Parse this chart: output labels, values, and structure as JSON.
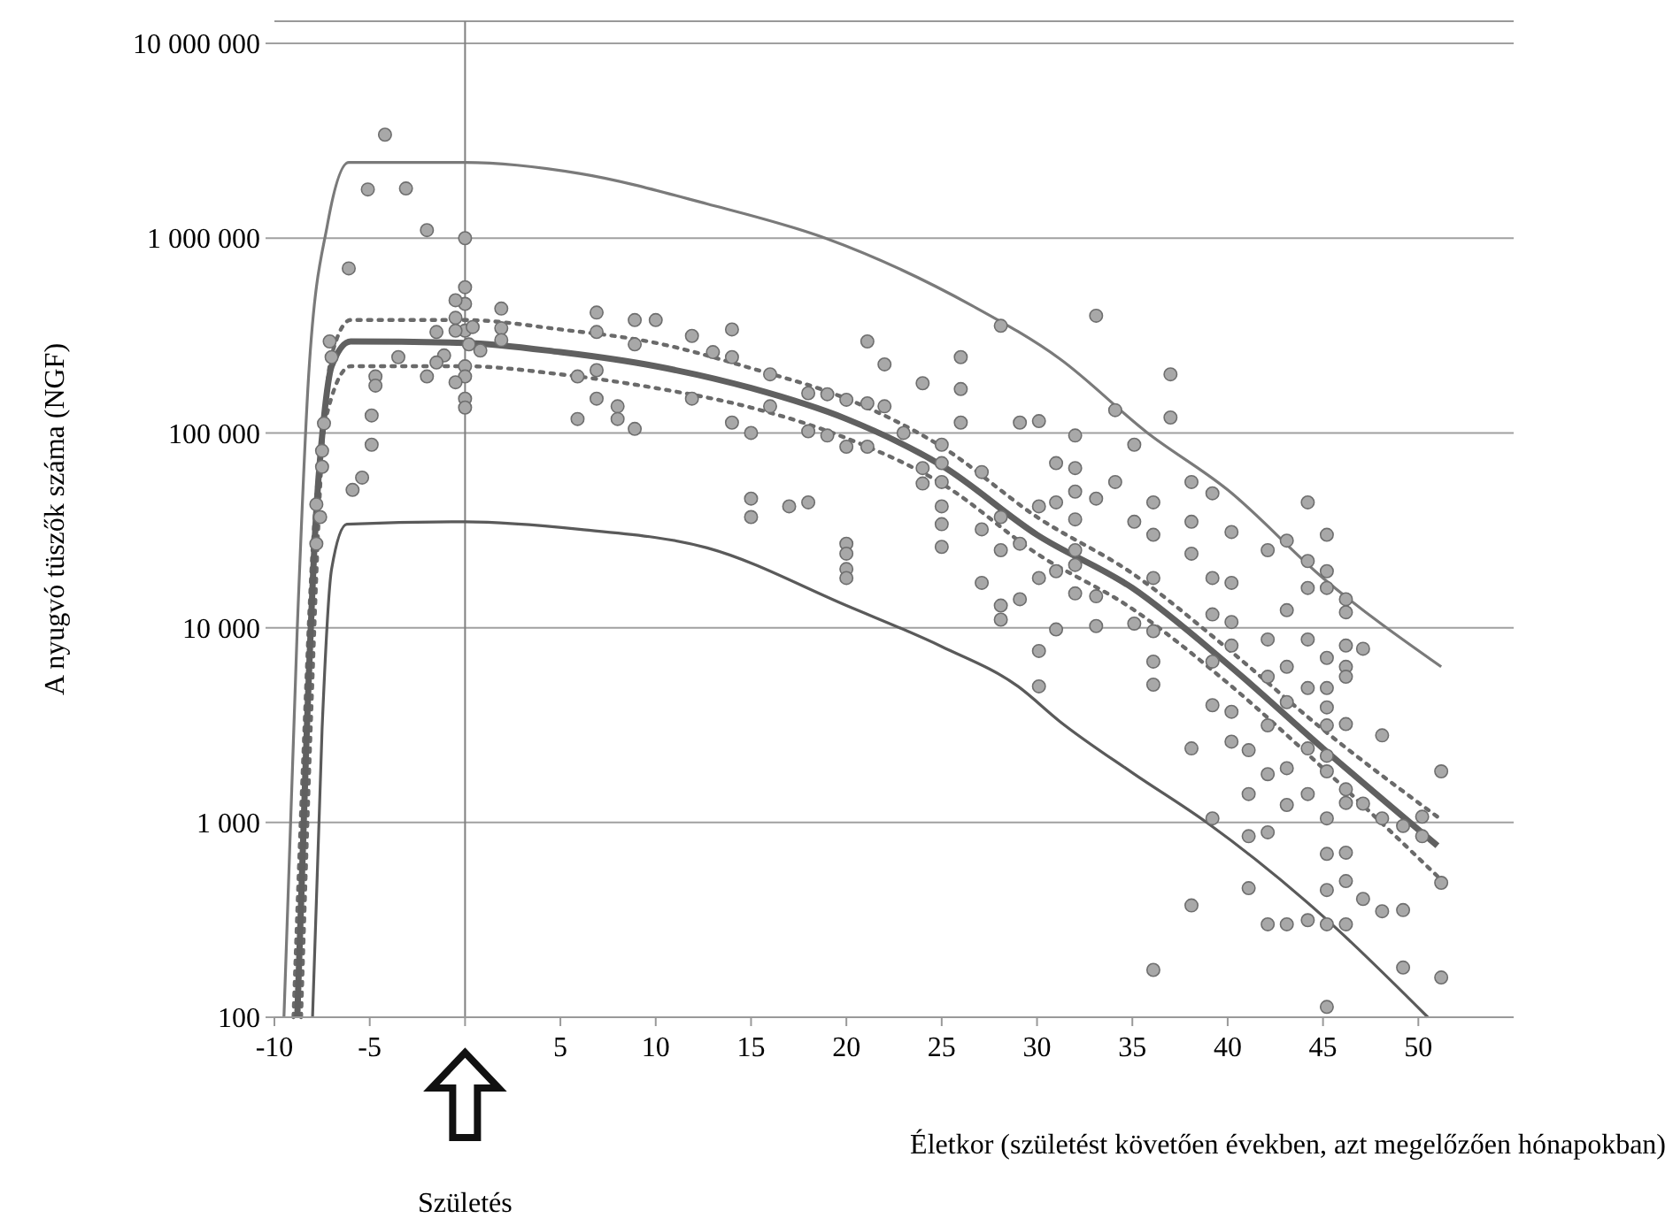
{
  "chart_data": {
    "type": "scatter",
    "xlabel": "Életkor (születést követően években, azt megelőzően hónapokban)",
    "ylabel": "A nyugvó tüszők száma (NGF)",
    "log": "y",
    "grid": "y",
    "xlim": [
      -10,
      55
    ],
    "ylim": [
      100,
      13000000
    ],
    "xticks": [
      -10,
      -5,
      {
        "value": 0,
        "label": null
      },
      5,
      10,
      15,
      20,
      25,
      30,
      35,
      40,
      45,
      50
    ],
    "yticks": [
      {
        "value": 100,
        "label": "100"
      },
      {
        "value": 1000,
        "label": "1 000"
      },
      {
        "value": 10000,
        "label": "10 000"
      },
      {
        "value": 100000,
        "label": "100 000"
      },
      {
        "value": 1000000,
        "label": "1 000 000"
      },
      {
        "value": 10000000,
        "label": "10 000 000"
      }
    ],
    "ref_lines": [
      {
        "axis": "x",
        "value": 0,
        "color": "#808080"
      }
    ],
    "annotations": [
      "Születés"
    ],
    "series": [
      {
        "type": "line",
        "color": "#7a7a7a",
        "line_style": "solid",
        "x": [
          -9.5,
          -8.8,
          -8.2,
          -7.2,
          -6.1,
          0,
          6,
          12.7,
          18.9,
          26.6,
          31.2,
          35.8,
          40,
          45,
          51.2
        ],
        "values": [
          100,
          10000,
          200000,
          1200000,
          2450000,
          2450000,
          2150000,
          1500000,
          1000000,
          450000,
          240000,
          100000,
          51000,
          18000,
          6300
        ]
      },
      {
        "type": "line",
        "color": "#5a5a5a",
        "line_style": "solid",
        "x": [
          -8,
          -7.5,
          -7,
          -6.2,
          0,
          6,
          12.7,
          20,
          25,
          29,
          31.2,
          35,
          38.9,
          45,
          50.5
        ],
        "values": [
          100,
          3000,
          20000,
          34000,
          35000,
          32000,
          25700,
          13000,
          8000,
          5000,
          3300,
          1800,
          1000,
          330,
          100
        ]
      },
      {
        "type": "line",
        "color": "#6a6a6a",
        "line_style": "dotted",
        "x": [
          -8.6,
          -8.1,
          -7.5,
          -7,
          -6,
          0,
          5,
          10,
          15,
          20,
          25,
          30,
          35,
          40,
          45,
          51
        ],
        "values": [
          100,
          3000,
          80000,
          250000,
          380000,
          380000,
          340000,
          290000,
          215000,
          150000,
          85000,
          37000,
          19000,
          7800,
          3000,
          1070
        ]
      },
      {
        "type": "line",
        "color": "#6a6a6a",
        "line_style": "dotted",
        "x": [
          -9,
          -8.5,
          -8,
          -7.2,
          -6,
          0,
          5,
          10,
          15,
          20,
          25,
          30,
          35,
          40,
          45,
          51
        ],
        "values": [
          100,
          2000,
          25000,
          130000,
          220000,
          220000,
          200000,
          170000,
          135000,
          94000,
          55000,
          24000,
          12500,
          5200,
          1900,
          530
        ]
      },
      {
        "type": "line",
        "color": "#606060",
        "line_style": "solid",
        "x": [
          -8.8,
          -8.3,
          -7.8,
          -7.4,
          -7,
          -6,
          0,
          5,
          10,
          15,
          20,
          25,
          30,
          35,
          40,
          45,
          51
        ],
        "values": [
          100,
          3000,
          40000,
          120000,
          220000,
          295000,
          290000,
          260000,
          220000,
          170000,
          118000,
          68000,
          30000,
          16000,
          6500,
          2400,
          760
        ]
      },
      {
        "type": "scatter",
        "color": "#a8a8a8",
        "marker": "circle",
        "x": [
          -4.2,
          -5.1,
          -3.1,
          -2.0,
          0,
          -6.1,
          -7.1,
          -7.0,
          -3.5,
          -4.7,
          -4.7,
          -4.9,
          -4.9,
          -5.4,
          -5.9,
          -7.4,
          -7.5,
          -7.5,
          -7.8,
          -7.6,
          -7.8,
          0,
          0,
          -0.5,
          -0.5,
          0,
          0.4,
          -0.5,
          0.2,
          0.8,
          -1.5,
          -1.1,
          -1.5,
          -2.0,
          0,
          0,
          -0.5,
          0,
          0,
          1.9,
          1.9,
          1.9,
          6.9,
          6.9,
          6.9,
          6.9,
          5.9,
          5.9,
          8.0,
          8.0,
          8.9,
          8.9,
          8.9,
          10.0,
          11.9,
          11.9,
          14.0,
          14.0,
          14.0,
          13.0,
          15.0,
          15.0,
          15.0,
          16.0,
          16.0,
          17.0,
          18.0,
          18.0,
          18.0,
          19.0,
          19.0,
          20.0,
          20.0,
          20.0,
          20.0,
          20.0,
          20.0,
          21.1,
          21.1,
          21.1,
          22.0,
          22.0,
          23.0,
          24.0,
          24.0,
          24.0,
          25.0,
          25.0,
          25.0,
          25.0,
          25.0,
          25.0,
          26.0,
          26.0,
          26.0,
          27.1,
          27.1,
          27.1,
          28.1,
          28.1,
          28.1,
          28.1,
          28.1,
          29.1,
          29.1,
          29.1,
          30.1,
          30.1,
          30.1,
          30.1,
          30.1,
          31.0,
          31.0,
          31.0,
          31.0,
          32.0,
          32.0,
          32.0,
          32.0,
          32.0,
          32.0,
          32.0,
          33.1,
          33.1,
          33.1,
          33.1,
          34.1,
          34.1,
          35.1,
          35.1,
          35.1,
          37.0,
          37.0,
          36.1,
          36.1,
          36.1,
          36.1,
          36.1,
          36.1,
          36.1,
          38.1,
          38.1,
          38.1,
          38.1,
          38.1,
          39.2,
          39.2,
          39.2,
          39.2,
          39.2,
          39.2,
          40.2,
          40.2,
          40.2,
          40.2,
          40.2,
          40.2,
          41.1,
          41.1,
          41.1,
          41.1,
          42.1,
          42.1,
          42.1,
          42.1,
          42.1,
          42.1,
          42.1,
          43.1,
          43.1,
          43.1,
          43.1,
          43.1,
          43.1,
          43.1,
          44.2,
          44.2,
          44.2,
          44.2,
          44.2,
          44.2,
          44.2,
          44.2,
          45.2,
          45.2,
          45.2,
          45.2,
          45.2,
          45.2,
          45.2,
          45.2,
          45.2,
          45.2,
          45.2,
          45.2,
          45.2,
          45.2,
          46.2,
          46.2,
          46.2,
          46.2,
          46.2,
          46.2,
          46.2,
          46.2,
          46.2,
          46.2,
          46.2,
          47.1,
          47.1,
          47.1,
          48.1,
          48.1,
          48.1,
          49.2,
          49.2,
          49.2,
          50.2,
          50.2,
          51.2,
          51.2,
          51.2
        ],
        "values": [
          3400000,
          1780000,
          1800000,
          1100000,
          1000000,
          700000,
          295000,
          245000,
          245000,
          195000,
          175000,
          123000,
          87000,
          59000,
          51000,
          112000,
          81000,
          67000,
          43000,
          37000,
          27000,
          560000,
          460000,
          480000,
          390000,
          335000,
          350000,
          335000,
          285000,
          265000,
          330000,
          250000,
          230000,
          195000,
          220000,
          195000,
          182000,
          150000,
          135000,
          435000,
          345000,
          300000,
          415000,
          330000,
          210000,
          150000,
          195000,
          118000,
          137000,
          118000,
          380000,
          285000,
          105000,
          380000,
          315000,
          150000,
          340000,
          245000,
          113000,
          260000,
          100000,
          46000,
          37000,
          200000,
          137000,
          42000,
          44000,
          160000,
          102000,
          158000,
          97000,
          148000,
          85000,
          27000,
          24000,
          20000,
          18000,
          295000,
          142000,
          85000,
          225000,
          137000,
          100000,
          180000,
          66000,
          55000,
          87000,
          70000,
          56000,
          42000,
          34000,
          26000,
          245000,
          168000,
          113000,
          63000,
          32000,
          17000,
          355000,
          37000,
          25000,
          13000,
          11000,
          113000,
          27000,
          14000,
          115000,
          42000,
          18000,
          7600,
          5000,
          70000,
          44000,
          19500,
          9800,
          97000,
          66000,
          50000,
          36000,
          25000,
          21000,
          15000,
          400000,
          46000,
          14500,
          10200,
          131000,
          56000,
          87000,
          35000,
          10500,
          200000,
          120000,
          44000,
          30000,
          18000,
          9600,
          6700,
          5100,
          175,
          56000,
          35000,
          24000,
          2400,
          375,
          49000,
          18000,
          11700,
          6700,
          4000,
          1050,
          31000,
          17000,
          10700,
          8100,
          3700,
          2600,
          2350,
          1400,
          850,
          460,
          25000,
          8700,
          5600,
          3150,
          1770,
          890,
          300,
          28000,
          12300,
          6300,
          4150,
          1900,
          1230,
          300,
          44000,
          22000,
          16000,
          8700,
          4900,
          2400,
          1400,
          315,
          30000,
          19500,
          16000,
          7000,
          4900,
          3900,
          3150,
          2200,
          1830,
          1050,
          690,
          450,
          300,
          113,
          14000,
          12000,
          8100,
          6300,
          5600,
          3200,
          1480,
          1260,
          700,
          500,
          300,
          7800,
          1250,
          405,
          2800,
          1050,
          350,
          960,
          355,
          180,
          1070,
          850,
          1830,
          490,
          160
        ]
      }
    ]
  }
}
